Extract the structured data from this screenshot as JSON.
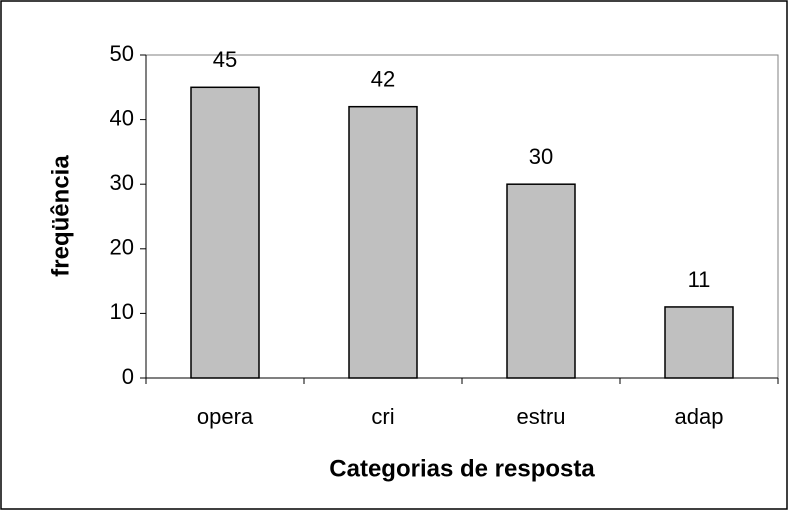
{
  "chart_data": {
    "type": "bar",
    "categories": [
      "opera",
      "cri",
      "estru",
      "adap"
    ],
    "values": [
      45,
      42,
      30,
      11
    ],
    "color": "#c0c0c0",
    "ylim": [
      0,
      50
    ],
    "yticks": [
      0,
      10,
      20,
      30,
      40,
      50
    ],
    "ylabel": "freqüência",
    "xlabel": "Categorias de resposta",
    "grid": false
  }
}
